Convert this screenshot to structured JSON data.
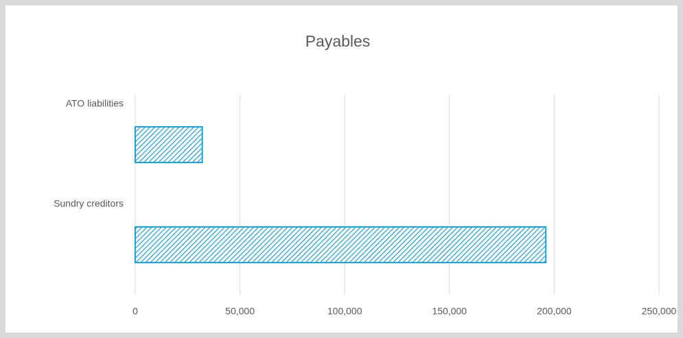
{
  "chart_data": {
    "type": "barh",
    "title": "Payables",
    "categories": [
      "ATO liabilities",
      "Sundry creditors"
    ],
    "values": [
      32000,
      196000
    ],
    "color": "#1aa3dc",
    "xlim": [
      0,
      250000
    ],
    "xticks": [
      0,
      {
        "value": 50000,
        "label": "50,000"
      },
      {
        "value": 100000,
        "label": "100,000"
      },
      {
        "value": 150000,
        "label": "150,000"
      },
      {
        "value": 200000,
        "label": "200,000"
      },
      {
        "value": 250000,
        "label": "250,000"
      }
    ],
    "grid": true
  }
}
